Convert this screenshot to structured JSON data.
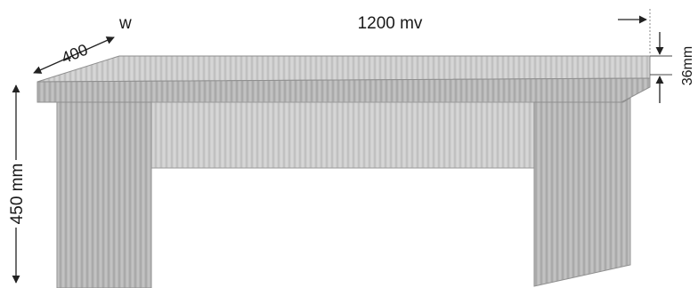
{
  "labels": {
    "width_marker": "w",
    "length": "1200 mv",
    "depth": "400",
    "thickness": "36mm",
    "height": "450 mm"
  },
  "colors": {
    "wood_light": "#d6d6d6",
    "wood_mid": "#bdbdbd",
    "wood_dark": "#9d9d9d",
    "line": "#222222"
  }
}
